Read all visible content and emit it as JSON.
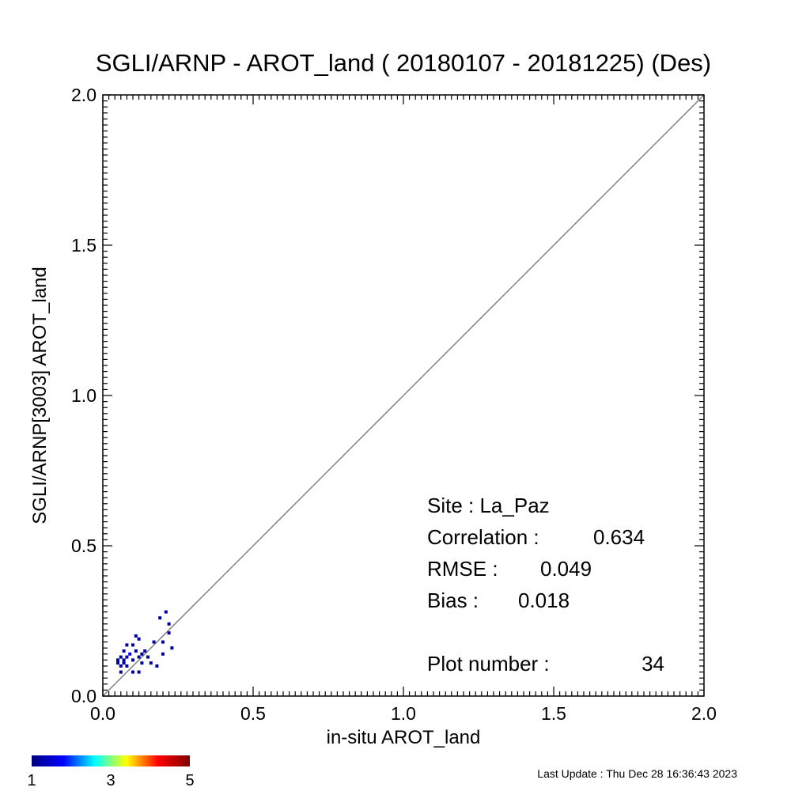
{
  "chart_data": {
    "type": "scatter",
    "title": "SGLI/ARNP - AROT_land ( 20180107 - 20181225) (Des)",
    "xlabel": "in-situ AROT_land",
    "ylabel": "SGLI/ARNP[3003]    AROT_land",
    "xlim": [
      0.0,
      2.0
    ],
    "ylim": [
      0.0,
      2.0
    ],
    "x_ticks": [
      "0.0",
      "0.5",
      "1.0",
      "1.5",
      "2.0"
    ],
    "y_ticks": [
      "0.0",
      "0.5",
      "1.0",
      "1.5",
      "2.0"
    ],
    "reference_line": "1:1",
    "grid": false,
    "points": [
      {
        "x": 0.05,
        "y": 0.12,
        "count": 1
      },
      {
        "x": 0.05,
        "y": 0.11,
        "count": 1
      },
      {
        "x": 0.06,
        "y": 0.13,
        "count": 1
      },
      {
        "x": 0.06,
        "y": 0.1,
        "count": 1
      },
      {
        "x": 0.06,
        "y": 0.08,
        "count": 1
      },
      {
        "x": 0.07,
        "y": 0.12,
        "count": 1
      },
      {
        "x": 0.07,
        "y": 0.11,
        "count": 1
      },
      {
        "x": 0.07,
        "y": 0.15,
        "count": 1
      },
      {
        "x": 0.08,
        "y": 0.13,
        "count": 1
      },
      {
        "x": 0.08,
        "y": 0.1,
        "count": 1
      },
      {
        "x": 0.08,
        "y": 0.17,
        "count": 1
      },
      {
        "x": 0.09,
        "y": 0.14,
        "count": 2
      },
      {
        "x": 0.1,
        "y": 0.12,
        "count": 1
      },
      {
        "x": 0.1,
        "y": 0.08,
        "count": 1
      },
      {
        "x": 0.1,
        "y": 0.17,
        "count": 1
      },
      {
        "x": 0.11,
        "y": 0.2,
        "count": 1
      },
      {
        "x": 0.11,
        "y": 0.15,
        "count": 1
      },
      {
        "x": 0.12,
        "y": 0.13,
        "count": 1
      },
      {
        "x": 0.12,
        "y": 0.08,
        "count": 1
      },
      {
        "x": 0.12,
        "y": 0.19,
        "count": 1
      },
      {
        "x": 0.13,
        "y": 0.14,
        "count": 1
      },
      {
        "x": 0.13,
        "y": 0.11,
        "count": 1
      },
      {
        "x": 0.14,
        "y": 0.15,
        "count": 1
      },
      {
        "x": 0.15,
        "y": 0.13,
        "count": 1
      },
      {
        "x": 0.16,
        "y": 0.11,
        "count": 1
      },
      {
        "x": 0.17,
        "y": 0.18,
        "count": 1
      },
      {
        "x": 0.18,
        "y": 0.1,
        "count": 1
      },
      {
        "x": 0.19,
        "y": 0.26,
        "count": 1
      },
      {
        "x": 0.2,
        "y": 0.18,
        "count": 1
      },
      {
        "x": 0.2,
        "y": 0.14,
        "count": 1
      },
      {
        "x": 0.21,
        "y": 0.28,
        "count": 1
      },
      {
        "x": 0.22,
        "y": 0.24,
        "count": 1
      },
      {
        "x": 0.22,
        "y": 0.21,
        "count": 1
      },
      {
        "x": 0.23,
        "y": 0.16,
        "count": 1
      }
    ],
    "colorbar": {
      "ticks": [
        "1",
        "3",
        "5"
      ],
      "min": 1,
      "max": 5,
      "stops": [
        "#00007f",
        "#0000ff",
        "#00ffff",
        "#ffff00",
        "#ff0000",
        "#7f0000"
      ]
    }
  },
  "stats": {
    "site": "Site : La_Paz",
    "correlation_label": "Correlation :",
    "correlation_value": "0.634",
    "rmse_label": "RMSE :",
    "rmse_value": "0.049",
    "bias_label": "Bias :",
    "bias_value": "0.018",
    "plot_number_label": "Plot number :",
    "plot_number_value": "34"
  },
  "footer": {
    "last_update": "Last Update : Thu Dec 28 16:36:43 2023"
  }
}
